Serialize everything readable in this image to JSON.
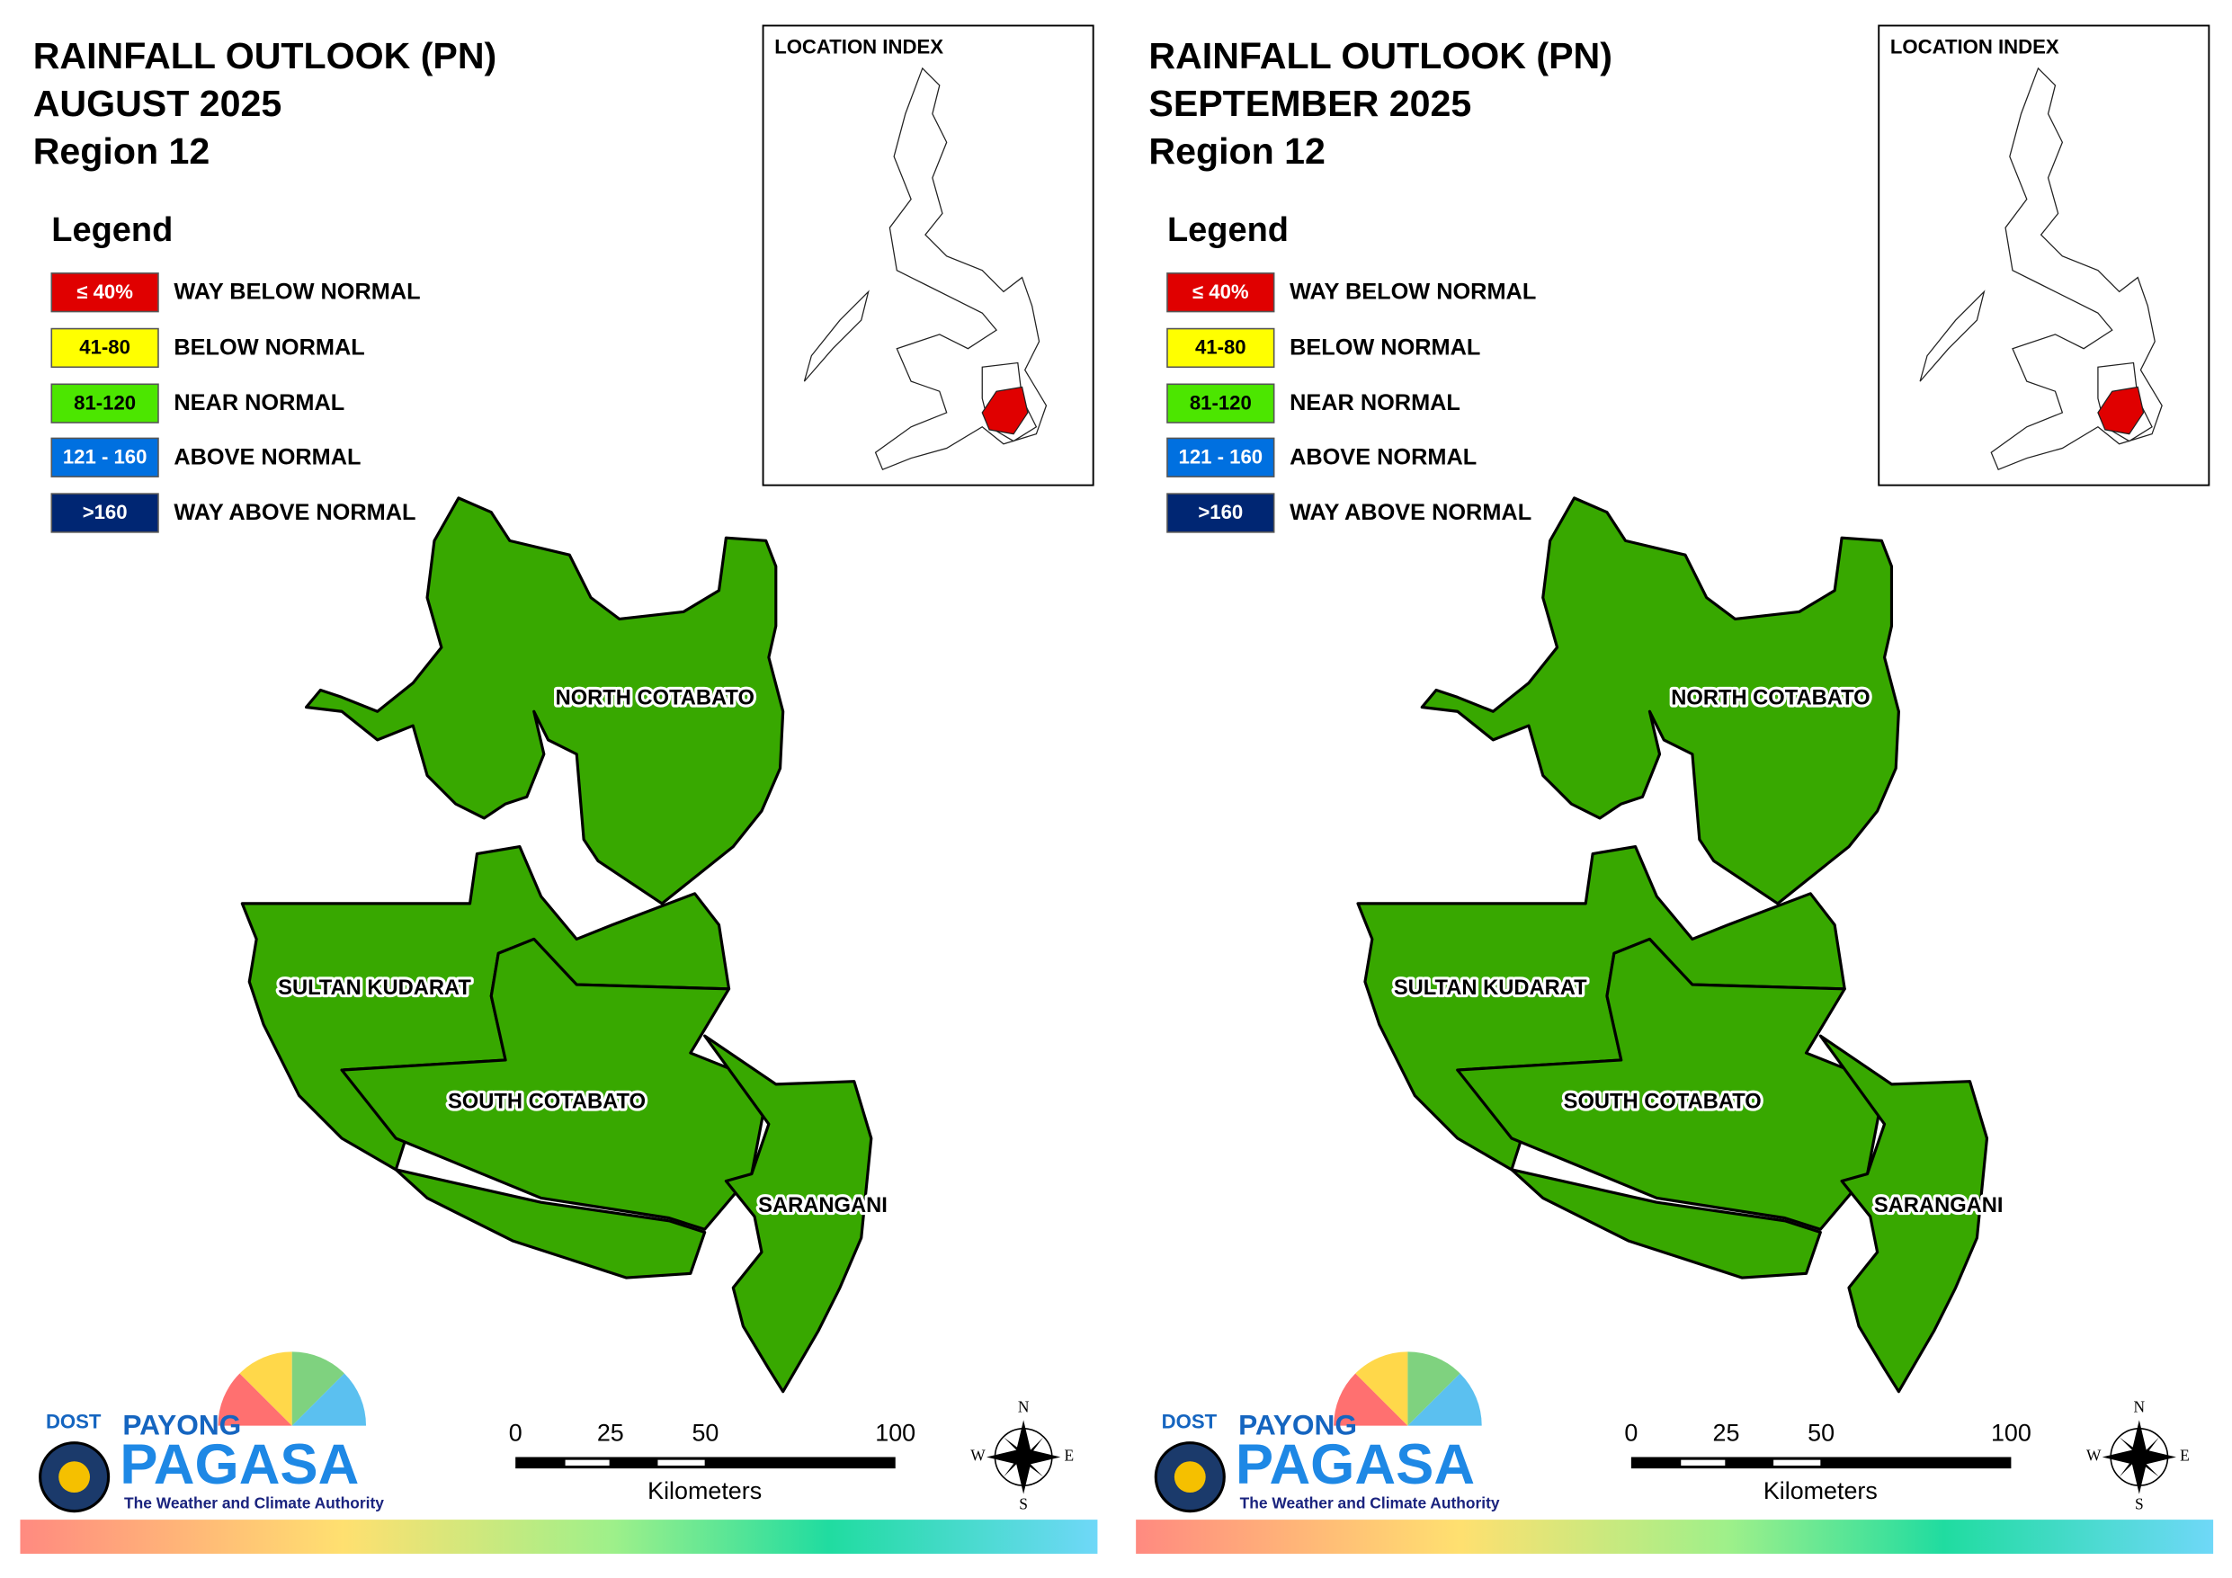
{
  "panels": [
    {
      "title": [
        "RAINFALL OUTLOOK (PN)",
        "AUGUST 2025",
        "Region 12"
      ],
      "legend": {
        "title": "Legend",
        "items": [
          {
            "range": "≤ 40%",
            "label": "WAY BELOW NORMAL",
            "color": "#e00000"
          },
          {
            "range": "41-80",
            "label": "BELOW NORMAL",
            "color": "#ffff00"
          },
          {
            "range": "81-120",
            "label": "NEAR NORMAL",
            "color": "#4ce600"
          },
          {
            "range": "121 - 160",
            "label": "ABOVE NORMAL",
            "color": "#0070e0"
          },
          {
            "range": ">160",
            "label": "WAY ABOVE NORMAL",
            "color": "#002673"
          }
        ]
      },
      "location_index": "LOCATION INDEX",
      "provinces": [
        {
          "name": "NORTH COTABATO",
          "color": "#38a800"
        },
        {
          "name": "SULTAN KUDARAT",
          "color": "#38a800"
        },
        {
          "name": "SOUTH COTABATO",
          "color": "#38a800"
        },
        {
          "name": "SARANGANI",
          "color": "#38a800"
        }
      ],
      "scale": {
        "ticks": [
          0,
          25,
          50,
          100
        ],
        "unit": "Kilometers"
      },
      "compass": [
        "N",
        "E",
        "S",
        "W"
      ],
      "logo": {
        "agency": "DOST",
        "brand1": "PAYONG",
        "brand2": "PAGASA",
        "tagline": "The Weather and Climate Authority"
      }
    },
    {
      "title": [
        "RAINFALL OUTLOOK (PN)",
        "SEPTEMBER 2025",
        "Region 12"
      ],
      "legend": {
        "title": "Legend",
        "items": [
          {
            "range": "≤ 40%",
            "label": "WAY BELOW NORMAL",
            "color": "#e00000"
          },
          {
            "range": "41-80",
            "label": "BELOW NORMAL",
            "color": "#ffff00"
          },
          {
            "range": "81-120",
            "label": "NEAR NORMAL",
            "color": "#4ce600"
          },
          {
            "range": "121 - 160",
            "label": "ABOVE NORMAL",
            "color": "#0070e0"
          },
          {
            "range": ">160",
            "label": "WAY ABOVE NORMAL",
            "color": "#002673"
          }
        ]
      },
      "location_index": "LOCATION INDEX",
      "provinces": [
        {
          "name": "NORTH COTABATO",
          "color": "#38a800"
        },
        {
          "name": "SULTAN KUDARAT",
          "color": "#38a800"
        },
        {
          "name": "SOUTH COTABATO",
          "color": "#38a800"
        },
        {
          "name": "SARANGANI",
          "color": "#38a800"
        }
      ],
      "scale": {
        "ticks": [
          0,
          25,
          50,
          100
        ],
        "unit": "Kilometers"
      },
      "compass": [
        "N",
        "E",
        "S",
        "W"
      ],
      "logo": {
        "agency": "DOST",
        "brand1": "PAYONG",
        "brand2": "PAGASA",
        "tagline": "The Weather and Climate Authority"
      }
    }
  ]
}
